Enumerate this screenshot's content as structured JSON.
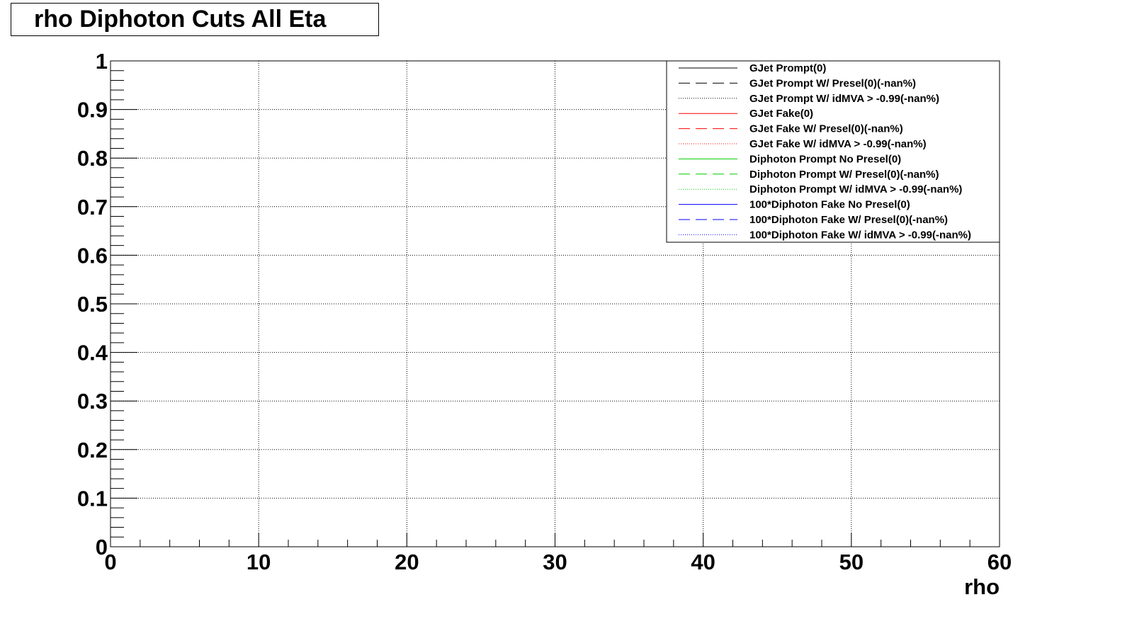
{
  "chart_data": {
    "type": "line",
    "title": "rho Diphoton Cuts All Eta",
    "xlabel": "rho",
    "ylabel": "",
    "xlim": [
      0,
      60
    ],
    "ylim": [
      0,
      1
    ],
    "x_ticks": [
      "0",
      "10",
      "20",
      "30",
      "40",
      "50",
      "60"
    ],
    "y_ticks": [
      "0",
      "0.1",
      "0.2",
      "0.3",
      "0.4",
      "0.5",
      "0.6",
      "0.7",
      "0.8",
      "0.9",
      "1"
    ],
    "grid": true,
    "legend_position": "top-right",
    "series": [
      {
        "name": "GJet Prompt(0)",
        "color": "#000000",
        "dash": "solid",
        "values": []
      },
      {
        "name": "GJet Prompt W/ Presel(0)(-nan%)",
        "color": "#000000",
        "dash": "dashed",
        "values": []
      },
      {
        "name": "GJet Prompt W/ idMVA > -0.99(-nan%)",
        "color": "#000000",
        "dash": "dotted",
        "values": []
      },
      {
        "name": "GJet Fake(0)",
        "color": "#ff0000",
        "dash": "solid",
        "values": []
      },
      {
        "name": "GJet Fake W/ Presel(0)(-nan%)",
        "color": "#ff0000",
        "dash": "dashed",
        "values": []
      },
      {
        "name": "GJet Fake W/ idMVA > -0.99(-nan%)",
        "color": "#ff0000",
        "dash": "dotted",
        "values": []
      },
      {
        "name": "Diphoton Prompt No Presel(0)",
        "color": "#00cc00",
        "dash": "solid",
        "values": []
      },
      {
        "name": "Diphoton Prompt W/ Presel(0)(-nan%)",
        "color": "#00cc00",
        "dash": "dashed",
        "values": []
      },
      {
        "name": "Diphoton Prompt W/ idMVA > -0.99(-nan%)",
        "color": "#00cc00",
        "dash": "dotted",
        "values": []
      },
      {
        "name": "100*Diphoton Fake No Presel(0)",
        "color": "#0000ff",
        "dash": "solid",
        "values": []
      },
      {
        "name": "100*Diphoton Fake W/ Presel(0)(-nan%)",
        "color": "#0000ff",
        "dash": "dashed",
        "values": []
      },
      {
        "name": "100*Diphoton Fake W/ idMVA > -0.99(-nan%)",
        "color": "#0000ff",
        "dash": "dotted",
        "values": []
      }
    ]
  }
}
